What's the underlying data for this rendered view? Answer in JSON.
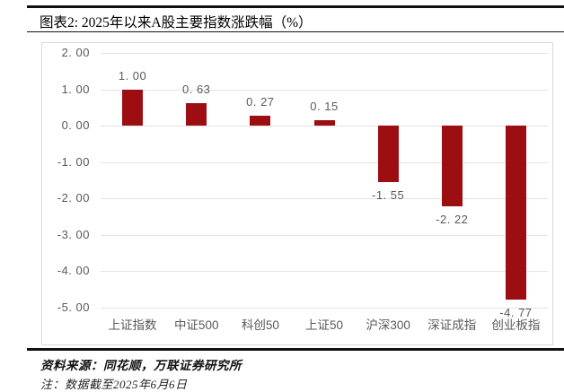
{
  "figure": {
    "title": "图表2: 2025年以来A股主要指数涨跌幅（%）",
    "source": "资料来源：同花顺，万联证券研究所",
    "footnote": "注：数据截至2025年6月6日"
  },
  "chart_data": {
    "type": "bar",
    "title": "2025年以来A股主要指数涨跌幅（%）",
    "categories": [
      "上证指数",
      "中证500",
      "科创50",
      "上证50",
      "沪深300",
      "深证成指",
      "创业板指"
    ],
    "values": [
      1.0,
      0.63,
      0.27,
      0.15,
      -1.55,
      -2.22,
      -4.77
    ],
    "value_labels": [
      "1. 00",
      "0. 63",
      "0. 27",
      "0. 15",
      "-1. 55",
      "-2. 22",
      "-4. 77"
    ],
    "xlabel": "",
    "ylabel": "",
    "ylim": [
      -5,
      2
    ],
    "ytick_step": 1,
    "ytick_labels": [
      "2. 00",
      "1. 00",
      "0. 00",
      "-1. 00",
      "-2. 00",
      "-3. 00",
      "-4. 00",
      "-5. 00"
    ],
    "grid": true,
    "legend": false,
    "bar_color": "#9c0e12",
    "axis_label_color": "#595959",
    "gridline_color": "#e4e4e4"
  }
}
